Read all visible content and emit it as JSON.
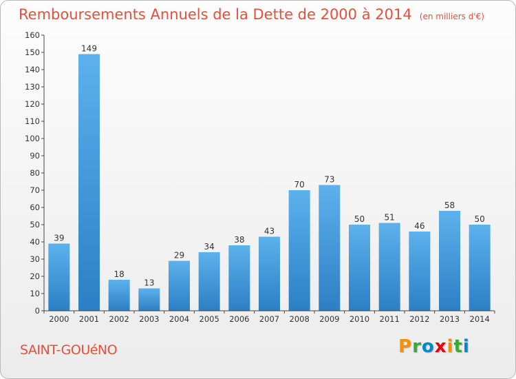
{
  "chart_data": {
    "type": "bar",
    "title": "Remboursements Annuels de la Dette de 2000 à 2014",
    "unit": "(en milliers d'€)",
    "categories": [
      "2000",
      "2001",
      "2002",
      "2003",
      "2004",
      "2005",
      "2006",
      "2007",
      "2008",
      "2009",
      "2010",
      "2011",
      "2012",
      "2013",
      "2014"
    ],
    "values": [
      39,
      149,
      18,
      13,
      29,
      34,
      38,
      43,
      70,
      73,
      50,
      51,
      46,
      58,
      50
    ],
    "ylim": [
      0,
      160
    ],
    "yticks": [
      0,
      10,
      20,
      30,
      40,
      50,
      60,
      70,
      80,
      90,
      100,
      110,
      120,
      130,
      140,
      150,
      160
    ],
    "grid": false,
    "bar_color": "#4a9fdf"
  },
  "commune": "SAINT-GOUéNO",
  "logo": {
    "letters": [
      "P",
      "r",
      "o",
      "x",
      "i",
      "t",
      "i"
    ],
    "colors": [
      "#f39200",
      "#3aaa35",
      "#0088cc",
      "#e30613",
      "#f39200",
      "#3aaa35",
      "#0088cc"
    ]
  }
}
